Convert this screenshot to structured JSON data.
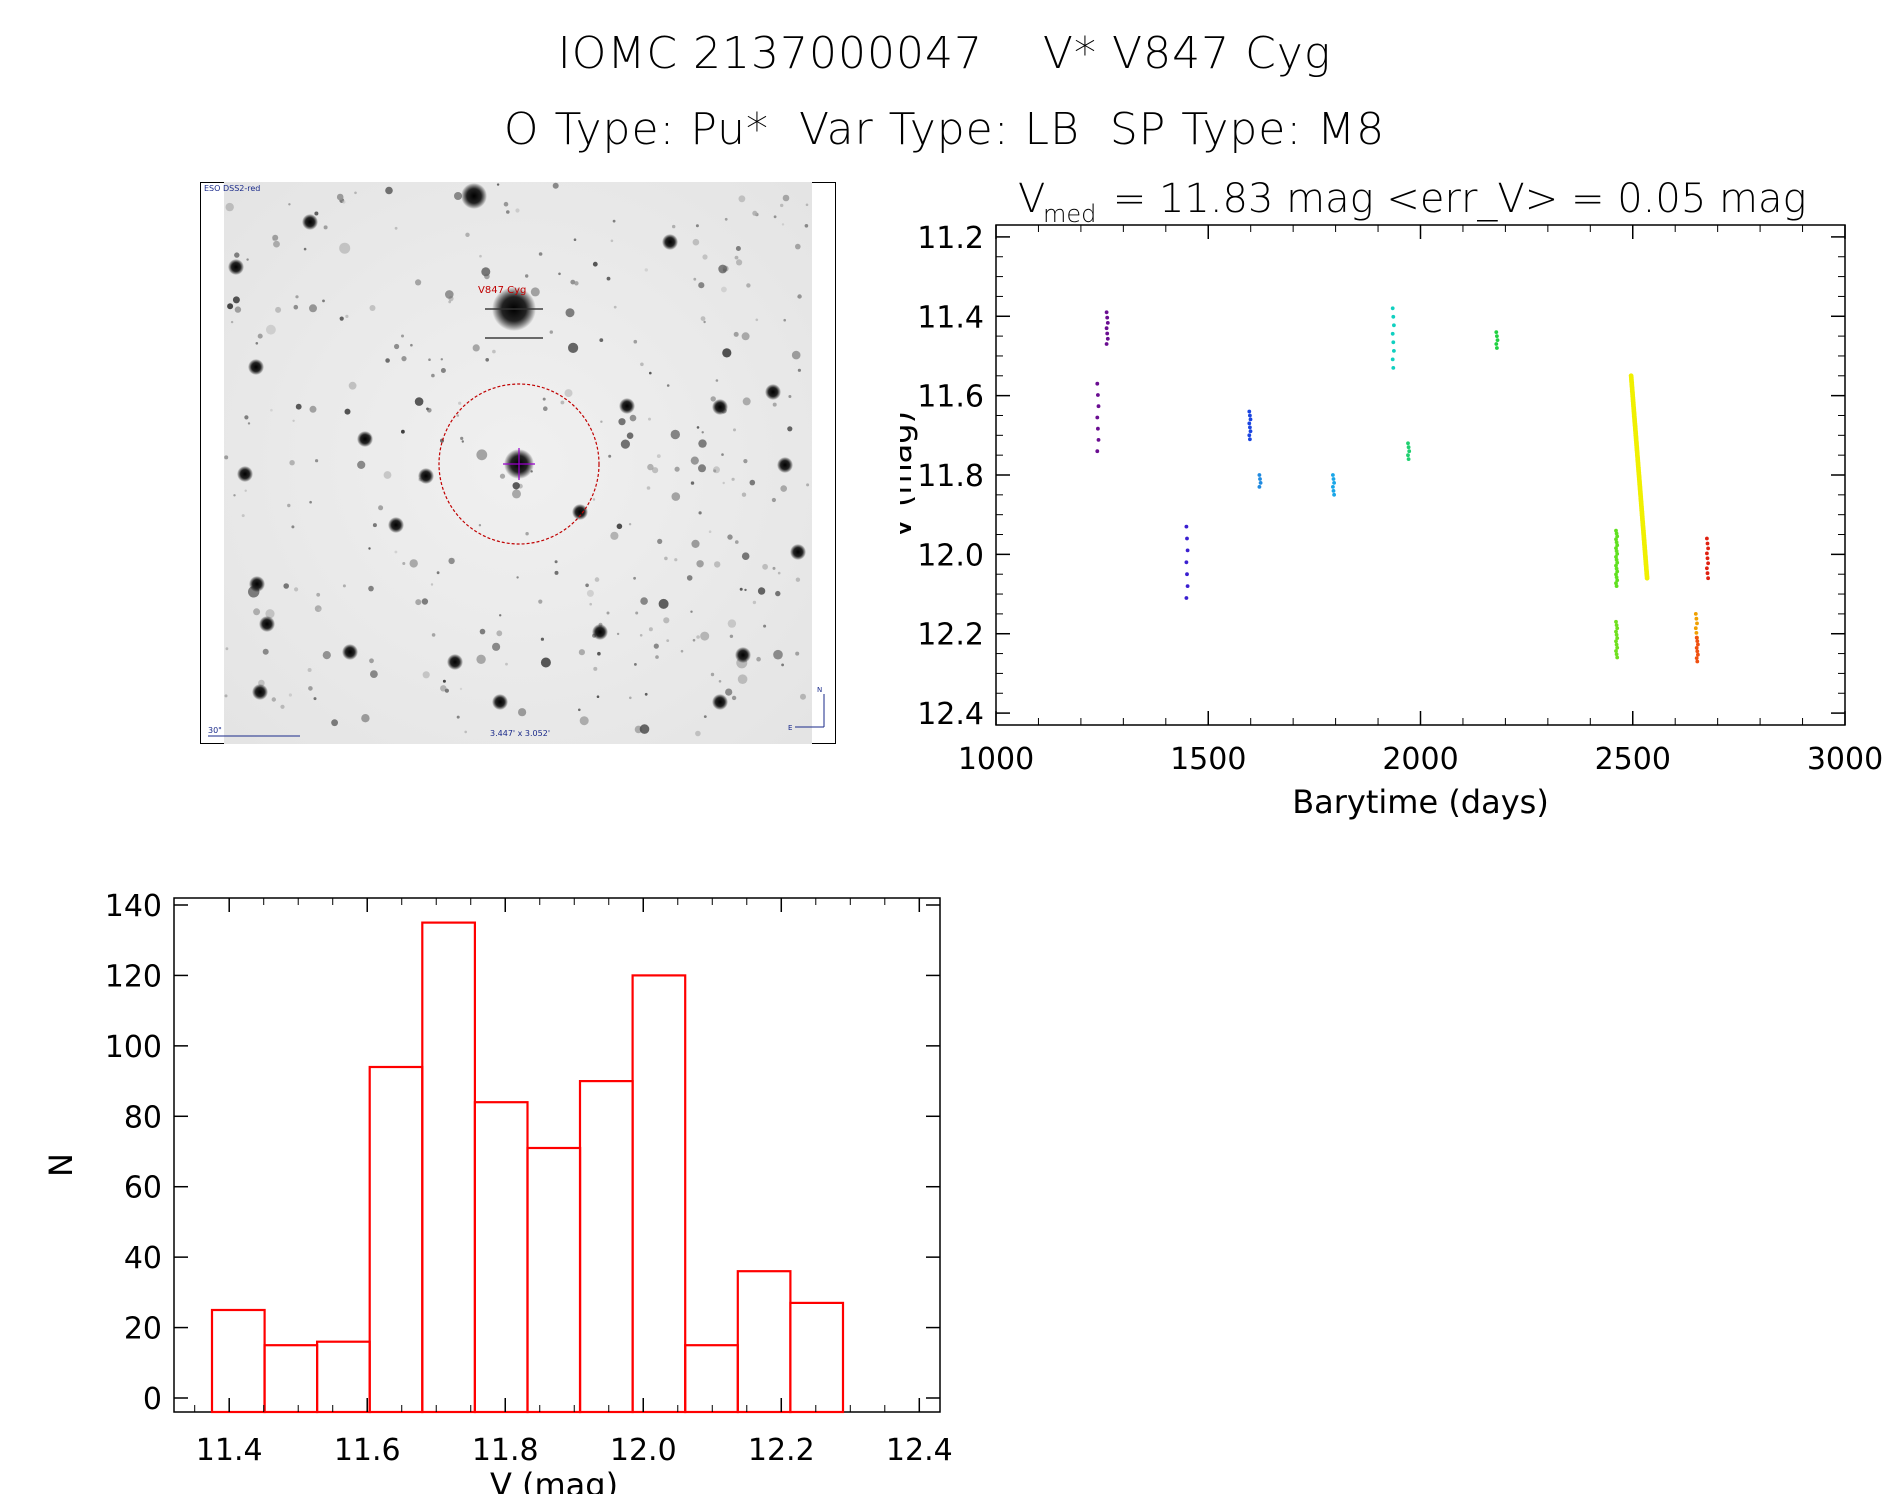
{
  "header": {
    "title_line1": "IOMC 2137000047    V* V847 Cyg",
    "title_line2": "O Type: Pu*  Var Type: LB  SP Type: M8"
  },
  "finder": {
    "corner_label": "ESO DSS2-red",
    "target_label": "V847 Cyg",
    "scale_label": "30\"",
    "fov_label": "3.447' x 3.052'",
    "north_label": "N",
    "east_label": "E",
    "circle_color": "#c00000",
    "cross_color": "#9900cc"
  },
  "chart_data": [
    {
      "type": "scatter",
      "name": "light-curve",
      "title_main": "V",
      "title_sub": "med",
      "title_rest": " = 11.83 mag <err_V> = 0.05 mag",
      "xlabel": "Barytime (days)",
      "ylabel": "V (mag)",
      "xlim": [
        1000,
        3000
      ],
      "ylim": [
        12.43,
        11.17
      ],
      "xticks": [
        1000,
        1500,
        2000,
        2500,
        3000
      ],
      "xtick_labels": [
        "1000",
        "1500",
        "2000",
        "2500",
        "3000"
      ],
      "yticks": [
        11.2,
        11.4,
        11.6,
        11.8,
        12.0,
        12.2,
        12.4
      ],
      "ytick_labels": [
        "11.2",
        "11.4",
        "11.6",
        "11.8",
        "12.0",
        "12.2",
        "12.4"
      ],
      "groups": [
        {
          "x": 1240,
          "ymin": 11.57,
          "ymax": 11.74,
          "n": 7,
          "color": "#6a0d91"
        },
        {
          "x": 1262,
          "ymin": 11.39,
          "ymax": 11.47,
          "n": 7,
          "color": "#6a0d91"
        },
        {
          "x": 1450,
          "ymin": 11.93,
          "ymax": 12.11,
          "n": 7,
          "color": "#3a1fd0"
        },
        {
          "x": 1598,
          "ymin": 11.64,
          "ymax": 11.71,
          "n": 8,
          "color": "#1a44e0"
        },
        {
          "x": 1622,
          "ymin": 11.8,
          "ymax": 11.83,
          "n": 4,
          "color": "#1f8ae0"
        },
        {
          "x": 1795,
          "ymin": 11.8,
          "ymax": 11.85,
          "n": 6,
          "color": "#1aa6e8"
        },
        {
          "x": 1936,
          "ymin": 11.38,
          "ymax": 11.53,
          "n": 8,
          "color": "#10d0c0"
        },
        {
          "x": 1972,
          "ymin": 11.72,
          "ymax": 11.76,
          "n": 5,
          "color": "#20d070"
        },
        {
          "x": 2180,
          "ymin": 11.44,
          "ymax": 11.48,
          "n": 5,
          "color": "#20d040"
        },
        {
          "x": 2462,
          "ymin": 11.94,
          "ymax": 12.08,
          "n": 20,
          "color": "#60e020"
        },
        {
          "x": 2462,
          "ymin": 12.17,
          "ymax": 12.26,
          "n": 12,
          "color": "#70e020"
        },
        {
          "x": 2515,
          "ymin": 11.55,
          "ymax": 12.06,
          "n": 120,
          "color": "#f0f000"
        },
        {
          "x": 2650,
          "ymin": 12.15,
          "ymax": 12.21,
          "n": 6,
          "color": "#f0a000"
        },
        {
          "x": 2652,
          "ymin": 12.21,
          "ymax": 12.27,
          "n": 8,
          "color": "#f05010"
        },
        {
          "x": 2676,
          "ymin": 11.96,
          "ymax": 12.06,
          "n": 9,
          "color": "#e02010"
        }
      ]
    },
    {
      "type": "bar",
      "name": "histogram",
      "xlabel": "V (mag)",
      "ylabel": "N",
      "xlim": [
        11.32,
        12.43
      ],
      "ylim": [
        0,
        140
      ],
      "xticks": [
        11.4,
        11.6,
        11.8,
        12.0,
        12.2,
        12.4
      ],
      "xtick_labels": [
        "11.4",
        "11.6",
        "11.8",
        "12.0",
        "12.2",
        "12.4"
      ],
      "yticks": [
        0,
        20,
        40,
        60,
        80,
        100,
        120,
        140
      ],
      "ytick_labels": [
        "0",
        "20",
        "40",
        "60",
        "80",
        "100",
        "120",
        "140"
      ],
      "bin_start": 11.375,
      "bin_width": 0.0762,
      "values": [
        25,
        15,
        16,
        94,
        135,
        84,
        71,
        90,
        120,
        15,
        36,
        27
      ],
      "bar_color": "#ff0000"
    }
  ]
}
